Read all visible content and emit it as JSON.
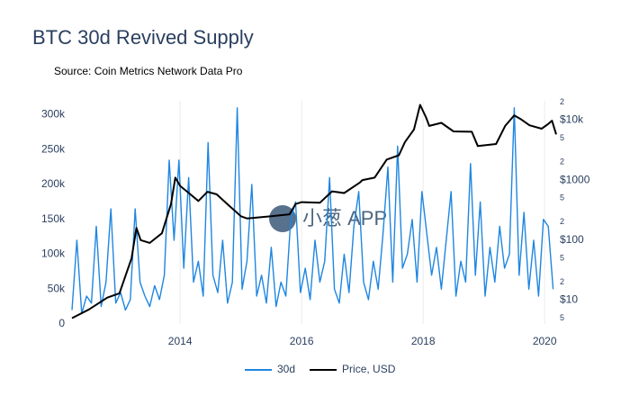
{
  "chart_data": {
    "type": "line",
    "title": "BTC 30d Revived Supply",
    "subtitle": "Source: Coin Metrics Network Data Pro",
    "watermark": "小葱 APP",
    "xlim": [
      2012.22,
      2020.19
    ],
    "xticks": [
      2014,
      2016,
      2018,
      2020
    ],
    "ylim": [
      0,
      320000
    ],
    "yticks": [
      0,
      {
        "value": 50000,
        "label": "50k"
      },
      {
        "value": 100000,
        "label": "100k"
      },
      {
        "value": 150000,
        "label": "150k"
      },
      {
        "value": 200000,
        "label": "200k"
      },
      {
        "value": 250000,
        "label": "250k"
      },
      {
        "value": 300000,
        "label": "300k"
      }
    ],
    "y2log": true,
    "y2lim": [
      4,
      21000
    ],
    "y2ticks": [
      5,
      {
        "value": 10,
        "label": "$10"
      },
      {
        "value": 20,
        "label": "2"
      },
      {
        "value": 50,
        "label": "5"
      },
      {
        "value": 100,
        "label": "$100"
      },
      {
        "value": 200,
        "label": "2"
      },
      {
        "value": 500,
        "label": "5"
      },
      {
        "value": 1000,
        "label": "$1000"
      },
      {
        "value": 2000,
        "label": "2"
      },
      {
        "value": 5000,
        "label": "5"
      },
      {
        "value": 10000,
        "label": "$10k"
      },
      {
        "value": 20000,
        "label": "2"
      }
    ],
    "grid": true,
    "legend": "bottom",
    "series": [
      {
        "name": "30d",
        "color": "#1f86e0",
        "x": [
          2012.22,
          2012.3,
          2012.38,
          2012.46,
          2012.54,
          2012.62,
          2012.7,
          2012.78,
          2012.86,
          2012.94,
          2013.02,
          2013.1,
          2013.18,
          2013.26,
          2013.34,
          2013.42,
          2013.5,
          2013.58,
          2013.66,
          2013.74,
          2013.82,
          2013.9,
          2013.98,
          2014.06,
          2014.14,
          2014.22,
          2014.3,
          2014.38,
          2014.46,
          2014.54,
          2014.62,
          2014.7,
          2014.78,
          2014.86,
          2014.94,
          2015.02,
          2015.1,
          2015.18,
          2015.26,
          2015.34,
          2015.42,
          2015.5,
          2015.58,
          2015.66,
          2015.74,
          2015.82,
          2015.9,
          2015.98,
          2016.06,
          2016.14,
          2016.22,
          2016.3,
          2016.38,
          2016.46,
          2016.54,
          2016.62,
          2016.7,
          2016.78,
          2016.86,
          2016.94,
          2017.02,
          2017.1,
          2017.18,
          2017.26,
          2017.34,
          2017.42,
          2017.5,
          2017.58,
          2017.66,
          2017.74,
          2017.82,
          2017.9,
          2017.98,
          2018.06,
          2018.14,
          2018.22,
          2018.3,
          2018.38,
          2018.46,
          2018.54,
          2018.62,
          2018.7,
          2018.78,
          2018.86,
          2018.94,
          2019.02,
          2019.1,
          2019.18,
          2019.26,
          2019.34,
          2019.42,
          2019.5,
          2019.58,
          2019.66,
          2019.74,
          2019.82,
          2019.9,
          2019.98,
          2020.06,
          2020.14
        ],
        "values": [
          20000,
          120000,
          15000,
          40000,
          30000,
          140000,
          25000,
          60000,
          165000,
          30000,
          45000,
          20000,
          35000,
          165000,
          60000,
          40000,
          25000,
          55000,
          35000,
          70000,
          235000,
          120000,
          235000,
          80000,
          210000,
          60000,
          90000,
          40000,
          260000,
          70000,
          45000,
          120000,
          30000,
          60000,
          310000,
          50000,
          90000,
          200000,
          40000,
          70000,
          30000,
          110000,
          25000,
          60000,
          40000,
          150000,
          175000,
          45000,
          80000,
          35000,
          120000,
          60000,
          90000,
          210000,
          50000,
          30000,
          100000,
          45000,
          140000,
          190000,
          60000,
          35000,
          90000,
          50000,
          130000,
          225000,
          60000,
          255000,
          80000,
          100000,
          150000,
          60000,
          190000,
          130000,
          70000,
          110000,
          50000,
          120000,
          190000,
          40000,
          90000,
          60000,
          230000,
          70000,
          175000,
          40000,
          110000,
          60000,
          140000,
          80000,
          100000,
          310000,
          70000,
          160000,
          50000,
          120000,
          40000,
          150000,
          140000,
          50000
        ]
      },
      {
        "name": "Price, USD",
        "color": "#000000",
        "axis": "y2",
        "x": [
          2012.22,
          2012.5,
          2012.8,
          2013.0,
          2013.2,
          2013.28,
          2013.35,
          2013.5,
          2013.7,
          2013.85,
          2013.92,
          2014.0,
          2014.15,
          2014.3,
          2014.45,
          2014.6,
          2014.8,
          2015.0,
          2015.1,
          2015.5,
          2015.8,
          2015.9,
          2016.0,
          2016.3,
          2016.5,
          2016.7,
          2016.95,
          2017.0,
          2017.2,
          2017.4,
          2017.6,
          2017.7,
          2017.85,
          2017.95,
          2018.05,
          2018.1,
          2018.3,
          2018.5,
          2018.8,
          2018.9,
          2019.0,
          2019.2,
          2019.35,
          2019.5,
          2019.6,
          2019.75,
          2019.95,
          2020.05,
          2020.12,
          2020.19
        ],
        "values": [
          5,
          7,
          11,
          13,
          50,
          160,
          100,
          90,
          130,
          400,
          1100,
          800,
          600,
          450,
          640,
          580,
          380,
          250,
          230,
          250,
          270,
          400,
          430,
          420,
          650,
          610,
          900,
          1000,
          1100,
          2200,
          2600,
          4300,
          7000,
          18000,
          11000,
          8000,
          9000,
          6500,
          6400,
          3700,
          3800,
          4000,
          8000,
          12000,
          10500,
          8200,
          7200,
          8500,
          9800,
          5800
        ]
      }
    ]
  }
}
